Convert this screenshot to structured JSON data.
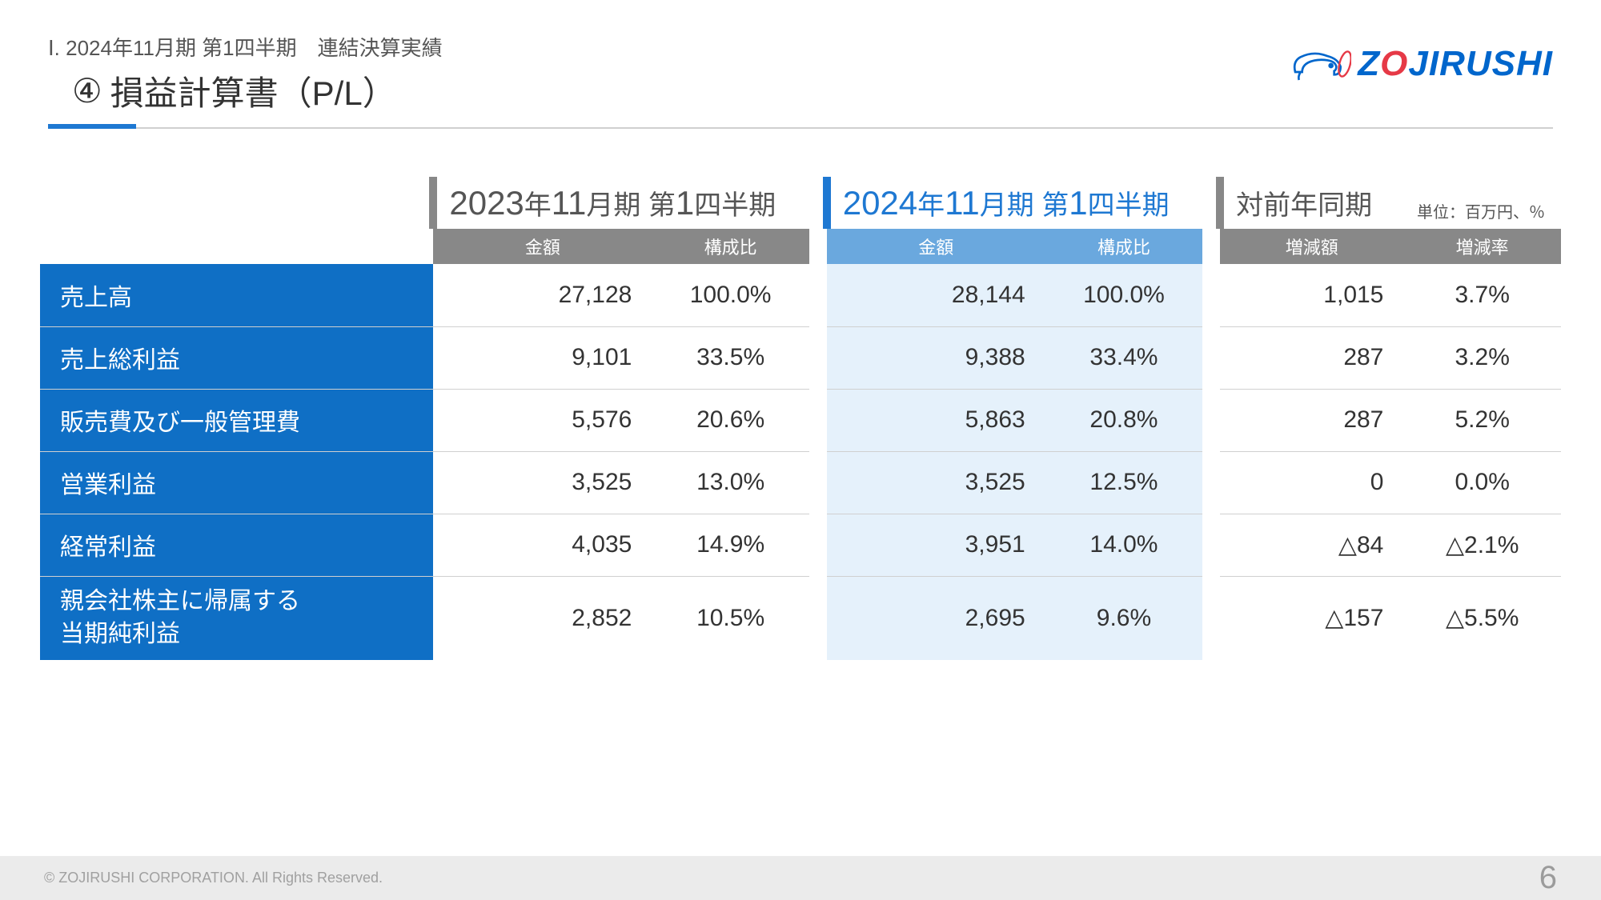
{
  "header": {
    "breadcrumb": "Ⅰ. 2024年11月期 第1四半期　連結決算実績",
    "title_num": "④",
    "title_text": "損益計算書（P/L）",
    "logo_text": "ZOJIRUSHI"
  },
  "table": {
    "periods": {
      "prev": "2023年11月期 第1四半期",
      "curr": "2024年11月期 第1四半期",
      "comp": "対前年同期"
    },
    "unit": "単位：百万円、％",
    "subheaders": {
      "amount": "金額",
      "ratio": "構成比",
      "diff": "増減額",
      "rate": "増減率"
    },
    "rows": [
      {
        "label": "売上高",
        "amount_prev": "27,128",
        "ratio_prev": "100.0%",
        "amount_curr": "28,144",
        "ratio_curr": "100.0%",
        "diff": "1,015",
        "rate": "3.7%"
      },
      {
        "label": "売上総利益",
        "amount_prev": "9,101",
        "ratio_prev": "33.5%",
        "amount_curr": "9,388",
        "ratio_curr": "33.4%",
        "diff": "287",
        "rate": "3.2%"
      },
      {
        "label": "販売費及び一般管理費",
        "amount_prev": "5,576",
        "ratio_prev": "20.6%",
        "amount_curr": "5,863",
        "ratio_curr": "20.8%",
        "diff": "287",
        "rate": "5.2%"
      },
      {
        "label": "営業利益",
        "amount_prev": "3,525",
        "ratio_prev": "13.0%",
        "amount_curr": "3,525",
        "ratio_curr": "12.5%",
        "diff": "0",
        "rate": "0.0%"
      },
      {
        "label": "経常利益",
        "amount_prev": "4,035",
        "ratio_prev": "14.9%",
        "amount_curr": "3,951",
        "ratio_curr": "14.0%",
        "diff": "△84",
        "rate": "△2.1%"
      },
      {
        "label": "親会社株主に帰属する\n当期純利益",
        "amount_prev": "2,852",
        "ratio_prev": "10.5%",
        "amount_curr": "2,695",
        "ratio_curr": "9.6%",
        "diff": "△157",
        "rate": "△5.5%"
      }
    ]
  },
  "footer": {
    "copyright": "© ZOJIRUSHI CORPORATION. All Rights Reserved.",
    "page": "6"
  },
  "colors": {
    "brand_blue": "#0066cc",
    "accent_blue": "#1e78d2",
    "row_blue": "#0f6fc5",
    "light_blue_bg": "#e5f1fb",
    "blue_subhdr": "#6aa8de",
    "gray_hdr": "#888888",
    "footer_bg": "#ebebeb"
  }
}
